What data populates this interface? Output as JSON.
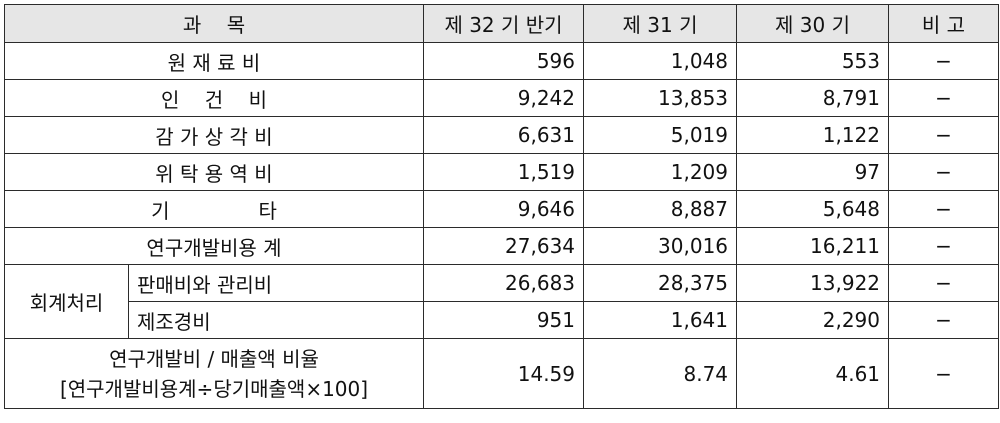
{
  "headers": {
    "item": "과    목",
    "col1": "제 32 기 반기",
    "col2": "제 31 기",
    "col3": "제 30 기",
    "note": "비 고"
  },
  "rows": [
    {
      "label": "원 재 료 비",
      "v1": "596",
      "v2": "1,048",
      "v3": "553",
      "note": "−"
    },
    {
      "label": "인    건    비",
      "v1": "9,242",
      "v2": "13,853",
      "v3": "8,791",
      "note": "−"
    },
    {
      "label": "감 가 상 각 비",
      "v1": "6,631",
      "v2": "5,019",
      "v3": "1,122",
      "note": "−"
    },
    {
      "label": "위 탁 용 역 비",
      "v1": "1,519",
      "v2": "1,209",
      "v3": "97",
      "note": "−"
    },
    {
      "label": "기              타",
      "v1": "9,646",
      "v2": "8,887",
      "v3": "5,648",
      "note": "−"
    },
    {
      "label": "연구개발비용 계",
      "v1": "27,634",
      "v2": "30,016",
      "v3": "16,211",
      "note": "−"
    }
  ],
  "accounting": {
    "group_label": "회계처리",
    "rows": [
      {
        "label": "판매비와 관리비",
        "v1": "26,683",
        "v2": "28,375",
        "v3": "13,922",
        "note": "−"
      },
      {
        "label": "제조경비",
        "v1": "951",
        "v2": "1,641",
        "v3": "2,290",
        "note": "−"
      }
    ]
  },
  "ratio": {
    "label_line1": "연구개발비 / 매출액 비율",
    "label_line2": "[연구개발비용계÷당기매출액×100]",
    "v1": "14.59",
    "v2": "8.74",
    "v3": "4.61",
    "note": "−"
  },
  "colors": {
    "header_bg": "#e6e6e6",
    "border": "#2b2b2b"
  }
}
